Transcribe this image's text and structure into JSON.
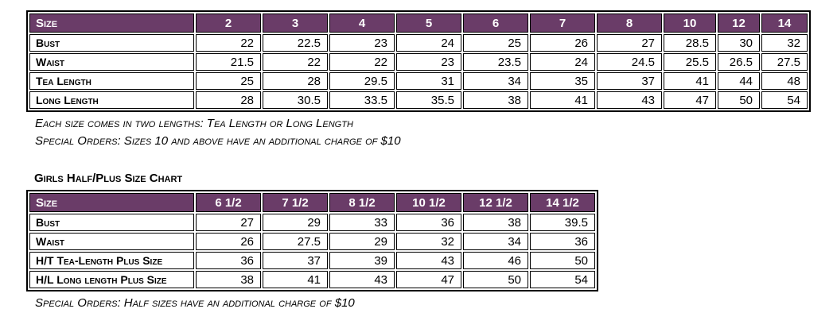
{
  "colors": {
    "header_bg": "#6A3C68",
    "header_text": "#FFFFFF",
    "border": "#000000",
    "text": "#000000"
  },
  "girls_size_chart": {
    "header": [
      "Size",
      "2",
      "3",
      "4",
      "5",
      "6",
      "7",
      "8",
      "10",
      "12",
      "14"
    ],
    "rows": [
      {
        "label": "Bust",
        "values": [
          "22",
          "22.5",
          "23",
          "24",
          "25",
          "26",
          "27",
          "28.5",
          "30",
          "32"
        ]
      },
      {
        "label": "Waist",
        "values": [
          "21.5",
          "22",
          "22",
          "23",
          "23.5",
          "24",
          "24.5",
          "25.5",
          "26.5",
          "27.5"
        ]
      },
      {
        "label": "Tea Length",
        "values": [
          "25",
          "28",
          "29.5",
          "31",
          "34",
          "35",
          "37",
          "41",
          "44",
          "48"
        ]
      },
      {
        "label": "Long Length",
        "values": [
          "28",
          "30.5",
          "33.5",
          "35.5",
          "38",
          "41",
          "43",
          "47",
          "50",
          "54"
        ]
      }
    ],
    "notes": [
      "Each size comes in two lengths: Tea Length or Long Length",
      "Special Orders: Sizes 10 and above have an additional charge of $10"
    ]
  },
  "girls_half_plus_size_chart": {
    "title": "Girls Half/Plus Size Chart",
    "header": [
      "Size",
      "6 1/2",
      "7 1/2",
      "8 1/2",
      "10 1/2",
      "12 1/2",
      "14 1/2"
    ],
    "rows": [
      {
        "label": "Bust",
        "values": [
          "27",
          "29",
          "33",
          "36",
          "38",
          "39.5"
        ]
      },
      {
        "label": "Waist",
        "values": [
          "26",
          "27.5",
          "29",
          "32",
          "34",
          "36"
        ]
      },
      {
        "label": "H/T Tea-Length Plus Size",
        "values": [
          "36",
          "37",
          "39",
          "43",
          "46",
          "50"
        ]
      },
      {
        "label": "H/L Long length Plus Size",
        "values": [
          "38",
          "41",
          "43",
          "47",
          "50",
          "54"
        ]
      }
    ],
    "notes": [
      "Special Orders: Half sizes have an additional charge of $10"
    ]
  }
}
